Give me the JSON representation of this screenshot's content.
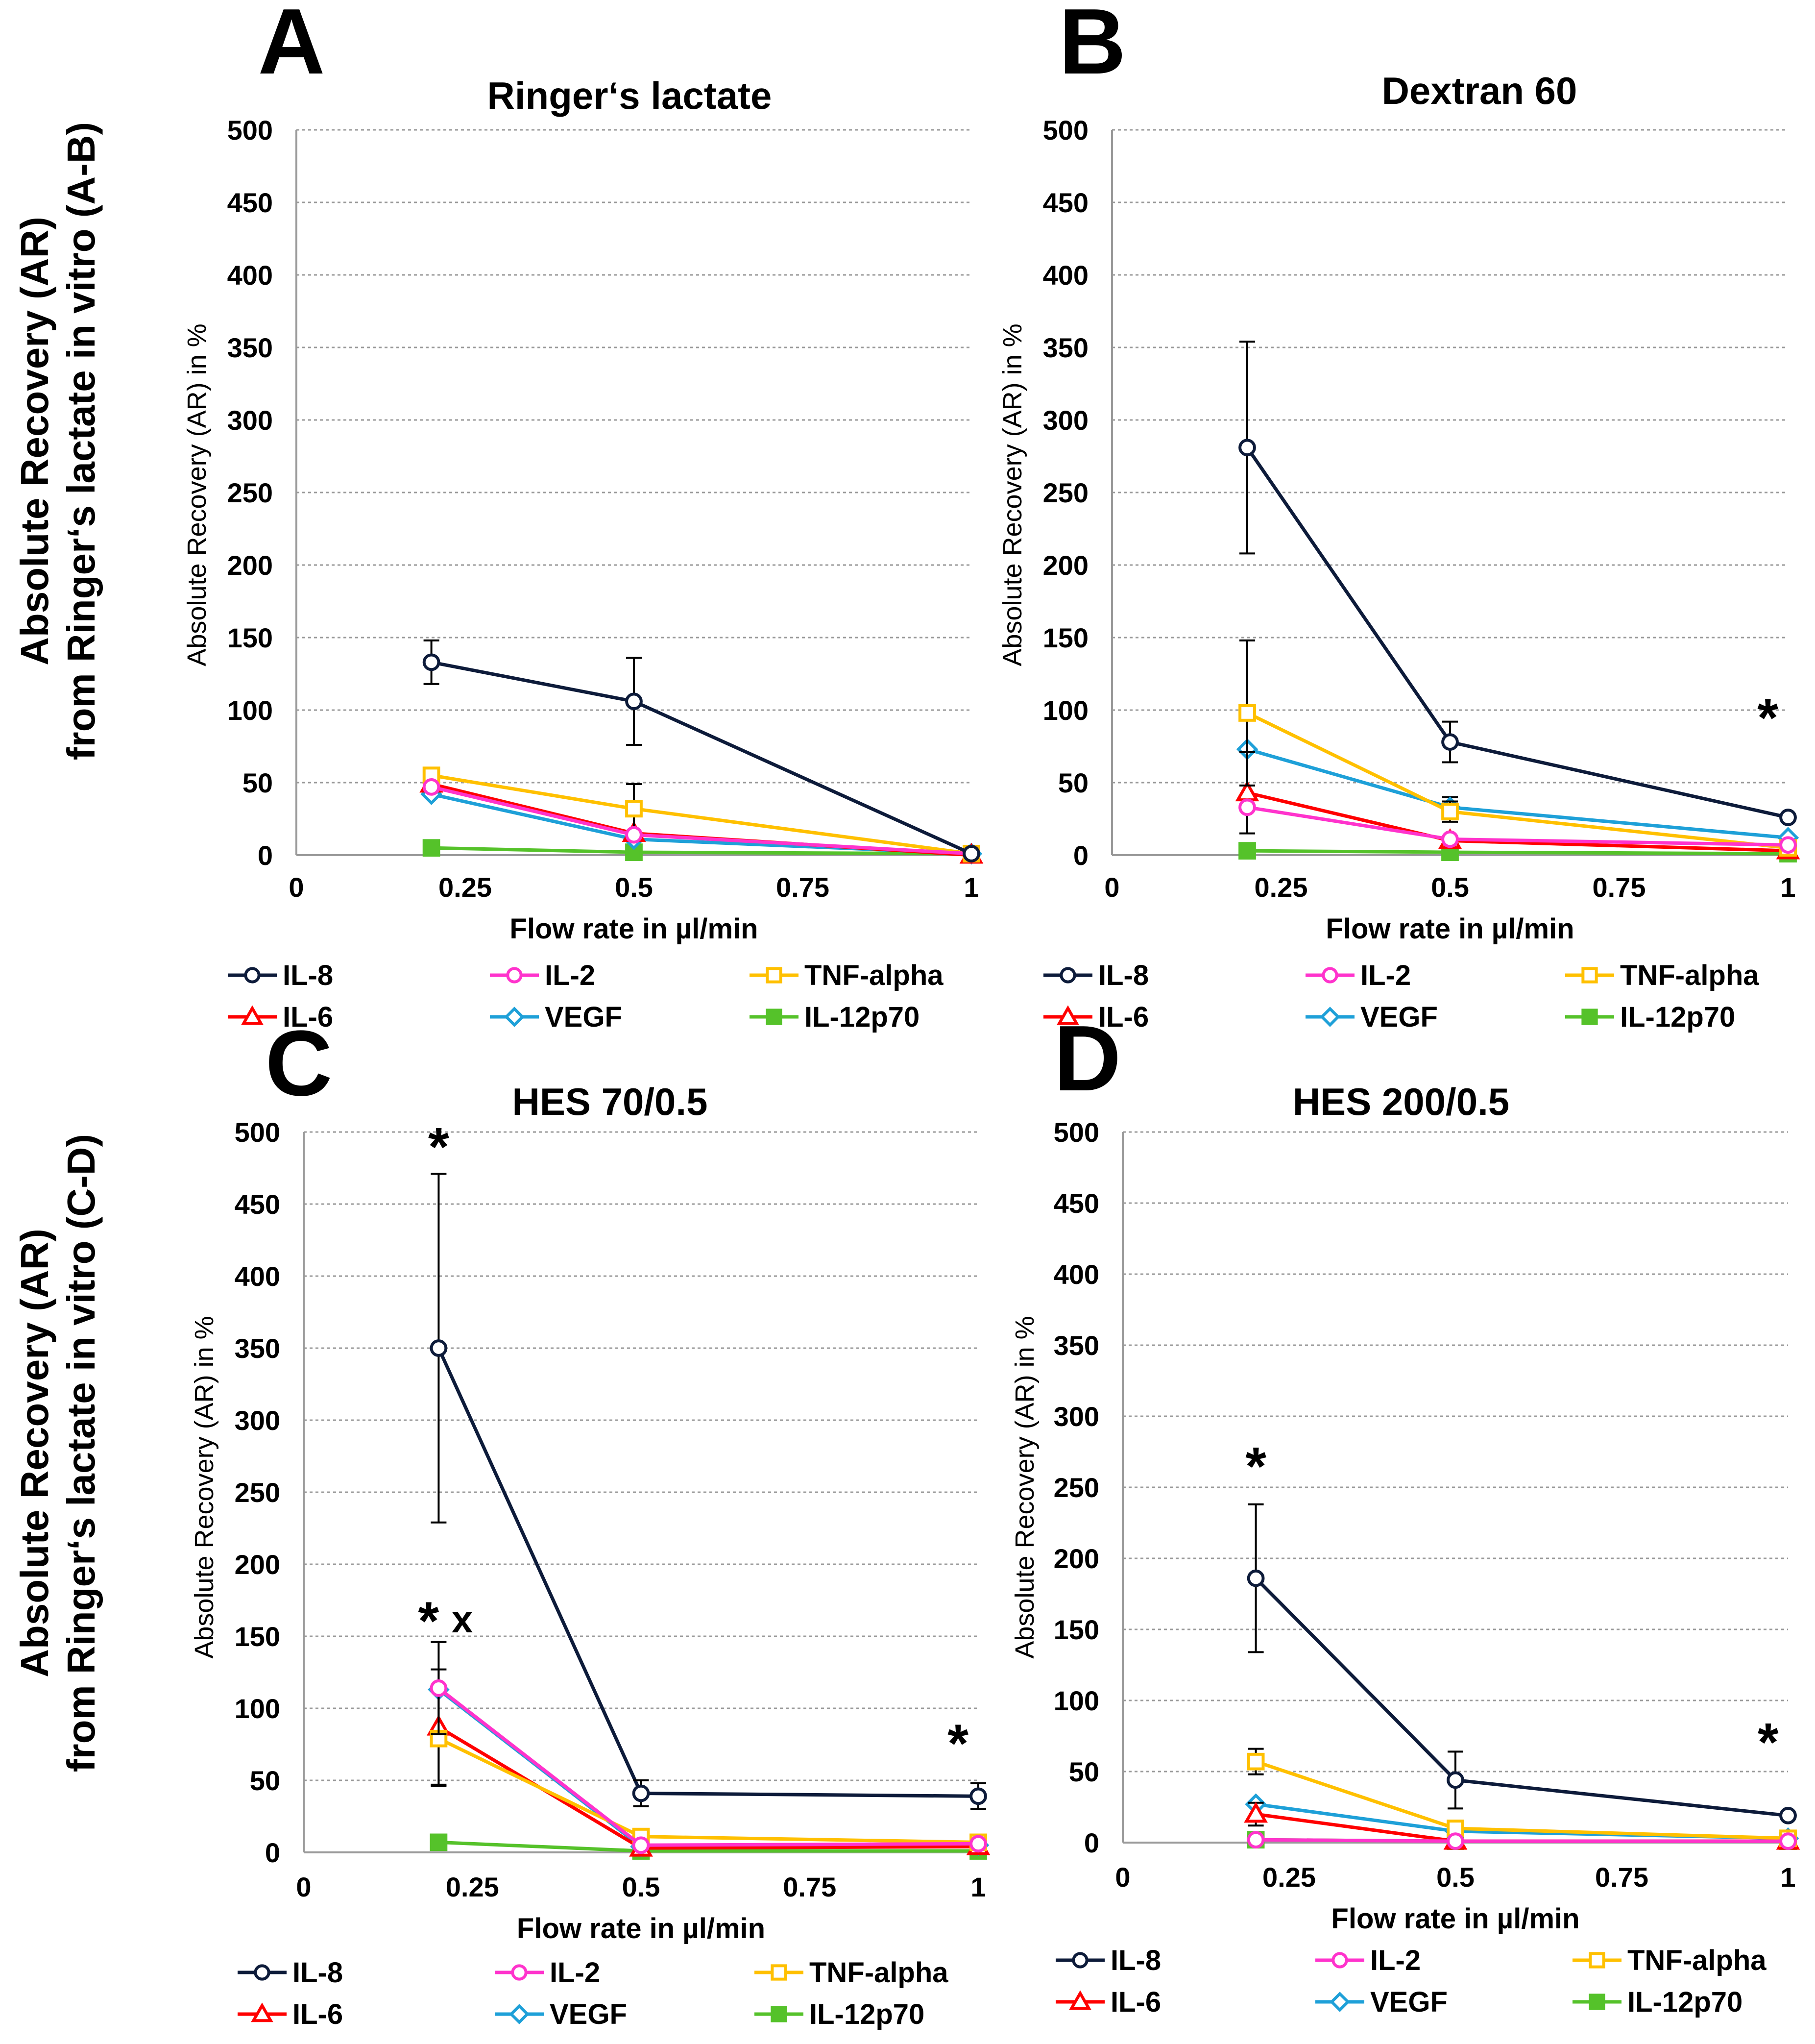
{
  "figure": {
    "row_labels": [
      {
        "line1": "Absolute Recovery (AR)",
        "line2": "from Ringer‘s lactate in vitro (A-B)"
      },
      {
        "line1": "Absolute Recovery (AR)",
        "line2": "from Ringer‘s lactate in vitro (C-D)"
      }
    ]
  },
  "series_styles": [
    {
      "name": "IL-8",
      "color": "#0d1b3a",
      "marker": "circle",
      "filled": false
    },
    {
      "name": "IL-2",
      "color": "#ff33cc",
      "marker": "circle",
      "filled": false
    },
    {
      "name": "TNF-alpha",
      "color": "#ffc000",
      "marker": "square",
      "filled": false
    },
    {
      "name": "IL-6",
      "color": "#ff0000",
      "marker": "triangle",
      "filled": false
    },
    {
      "name": "VEGF",
      "color": "#1ea0d8",
      "marker": "diamond",
      "filled": false
    },
    {
      "name": "IL-12p70",
      "color": "#55c22a",
      "marker": "square",
      "filled": true
    }
  ],
  "chart_data": [
    {
      "type": "line",
      "panel_letter": "A",
      "title": "Ringer‘s lactate",
      "xlabel": "Flow rate in µl/min",
      "ylabel": "Absolute Recovery (AR) in %",
      "xlim": [
        0,
        1
      ],
      "ylim": [
        0,
        500
      ],
      "x_ticks": [
        "0",
        "0.25",
        "0.5",
        "0.75",
        "1"
      ],
      "y_ticks": [
        "0",
        "50",
        "100",
        "150",
        "200",
        "250",
        "300",
        "350",
        "400",
        "450",
        "500"
      ],
      "x": [
        0.2,
        0.5,
        1
      ],
      "series": [
        {
          "name": "IL-8",
          "values": [
            133,
            106,
            1
          ],
          "err": [
            15,
            30,
            0
          ]
        },
        {
          "name": "IL-2",
          "values": [
            47,
            14,
            1
          ],
          "err": [
            0,
            0,
            0
          ]
        },
        {
          "name": "TNF-alpha",
          "values": [
            55,
            32,
            1
          ],
          "err": [
            0,
            17,
            0
          ]
        },
        {
          "name": "IL-6",
          "values": [
            49,
            15,
            0
          ],
          "err": [
            0,
            0,
            0
          ]
        },
        {
          "name": "VEGF",
          "values": [
            42,
            11,
            1
          ],
          "err": [
            0,
            0,
            0
          ]
        },
        {
          "name": "IL-12p70",
          "values": [
            5,
            2,
            1
          ],
          "err": [
            0,
            0,
            0
          ]
        }
      ],
      "annotations": []
    },
    {
      "type": "line",
      "panel_letter": "B",
      "title": "Dextran 60",
      "xlabel": "Flow rate in µl/min",
      "ylabel": "Absolute Recovery (AR) in %",
      "xlim": [
        0,
        1
      ],
      "ylim": [
        0,
        500
      ],
      "x_ticks": [
        "0",
        "0.25",
        "0.5",
        "0.75",
        "1"
      ],
      "y_ticks": [
        "0",
        "50",
        "100",
        "150",
        "200",
        "250",
        "300",
        "350",
        "400",
        "450",
        "500"
      ],
      "x": [
        0.2,
        0.5,
        1
      ],
      "series": [
        {
          "name": "IL-8",
          "values": [
            281,
            78,
            26
          ],
          "err": [
            73,
            14,
            0
          ]
        },
        {
          "name": "IL-2",
          "values": [
            33,
            11,
            7
          ],
          "err": [
            0,
            0,
            0
          ]
        },
        {
          "name": "TNF-alpha",
          "values": [
            98,
            30,
            5
          ],
          "err": [
            50,
            7,
            0
          ]
        },
        {
          "name": "IL-6",
          "values": [
            43,
            10,
            3
          ],
          "err": [
            28,
            0,
            0
          ]
        },
        {
          "name": "VEGF",
          "values": [
            73,
            33,
            12
          ],
          "err": [
            0,
            7,
            0
          ]
        },
        {
          "name": "IL-12p70",
          "values": [
            3,
            2,
            1
          ],
          "err": [
            0,
            0,
            0
          ]
        }
      ],
      "annotations": [
        {
          "text": "*",
          "x": 0.97,
          "y": 92
        }
      ]
    },
    {
      "type": "line",
      "panel_letter": "C",
      "title": "HES 70/0.5",
      "xlabel": "Flow rate in µl/min",
      "ylabel": "Absolute Recovery (AR) in %",
      "xlim": [
        0,
        1
      ],
      "ylim": [
        0,
        500
      ],
      "x_ticks": [
        "0",
        "0.25",
        "0.5",
        "0.75",
        "1"
      ],
      "y_ticks": [
        "0",
        "50",
        "100",
        "150",
        "200",
        "250",
        "300",
        "350",
        "400",
        "450",
        "500"
      ],
      "x": [
        0.2,
        0.5,
        1
      ],
      "series": [
        {
          "name": "IL-8",
          "values": [
            350,
            41,
            39
          ],
          "err": [
            121,
            9,
            9
          ]
        },
        {
          "name": "IL-2",
          "values": [
            114,
            5,
            6
          ],
          "err": [
            32,
            0,
            0
          ]
        },
        {
          "name": "TNF-alpha",
          "values": [
            79,
            11,
            7
          ],
          "err": [
            33,
            0,
            0
          ]
        },
        {
          "name": "IL-6",
          "values": [
            87,
            3,
            4
          ],
          "err": [
            40,
            0,
            0
          ]
        },
        {
          "name": "VEGF",
          "values": [
            113,
            4,
            5
          ],
          "err": [
            0,
            0,
            0
          ]
        },
        {
          "name": "IL-12p70",
          "values": [
            7,
            1,
            1
          ],
          "err": [
            0,
            0,
            0
          ]
        }
      ],
      "annotations": [
        {
          "text": "*",
          "x": 0.2,
          "y": 487
        },
        {
          "text": "*",
          "x": 0.185,
          "y": 158
        },
        {
          "text": "x",
          "x": 0.235,
          "y": 163
        },
        {
          "text": "*",
          "x": 0.97,
          "y": 73
        }
      ]
    },
    {
      "type": "line",
      "panel_letter": "D",
      "title": "HES 200/0.5",
      "xlabel": "Flow rate in µl/min",
      "ylabel": "Absolute Recovery (AR) in %",
      "xlim": [
        0,
        1
      ],
      "ylim": [
        0,
        500
      ],
      "x_ticks": [
        "0",
        "0.25",
        "0.5",
        "0.75",
        "1"
      ],
      "y_ticks": [
        "0",
        "50",
        "100",
        "150",
        "200",
        "250",
        "300",
        "350",
        "400",
        "450",
        "500"
      ],
      "x": [
        0.2,
        0.5,
        1
      ],
      "series": [
        {
          "name": "IL-8",
          "values": [
            186,
            44,
            19
          ],
          "err": [
            52,
            20,
            0
          ]
        },
        {
          "name": "IL-2",
          "values": [
            2,
            1,
            1
          ],
          "err": [
            0,
            0,
            0
          ]
        },
        {
          "name": "TNF-alpha",
          "values": [
            57,
            10,
            3
          ],
          "err": [
            9,
            0,
            0
          ]
        },
        {
          "name": "IL-6",
          "values": [
            20,
            1,
            1
          ],
          "err": [
            8,
            0,
            0
          ]
        },
        {
          "name": "VEGF",
          "values": [
            27,
            8,
            3
          ],
          "err": [
            0,
            0,
            0
          ]
        },
        {
          "name": "IL-12p70",
          "values": [
            2,
            1,
            1
          ],
          "err": [
            0,
            0,
            0
          ]
        }
      ],
      "annotations": [
        {
          "text": "*",
          "x": 0.2,
          "y": 262
        },
        {
          "text": "*",
          "x": 0.97,
          "y": 68
        }
      ]
    }
  ]
}
